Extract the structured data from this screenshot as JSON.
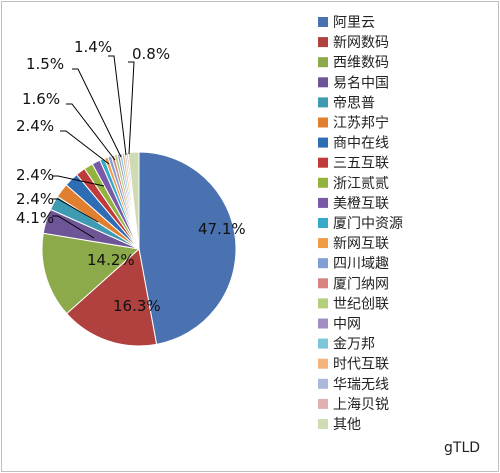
{
  "chart_data": {
    "type": "pie",
    "corner_label": "gTLD",
    "slices": [
      {
        "label": "阿里云",
        "value": 47.1,
        "value_label": "47.1%",
        "color": "#4a72b0"
      },
      {
        "label": "新网数码",
        "value": 16.3,
        "value_label": "16.3%",
        "color": "#b0413e"
      },
      {
        "label": "西维数码",
        "value": 14.2,
        "value_label": "14.2%",
        "color": "#8daa4a"
      },
      {
        "label": "易名中国",
        "value": 4.1,
        "value_label": "4.1%",
        "color": "#6e5597"
      },
      {
        "label": "帝思普",
        "value": 2.4,
        "value_label": "2.4%",
        "color": "#3e9bb2"
      },
      {
        "label": "江苏邦宁",
        "value": 2.4,
        "value_label": "2.4%",
        "color": "#e07f2f"
      },
      {
        "label": "商中在线",
        "value": 2.4,
        "value_label": "2.4%",
        "color": "#2e6db4"
      },
      {
        "label": "三五互联",
        "value": 1.6,
        "value_label": "1.6%",
        "color": "#c0393b"
      },
      {
        "label": "浙江贰贰",
        "value": 1.5,
        "value_label": "1.5%",
        "color": "#93b33f"
      },
      {
        "label": "美橙互联",
        "value": 1.4,
        "value_label": "1.4%",
        "color": "#7a5aa8"
      },
      {
        "label": "厦门中资源",
        "value": 0.8,
        "value_label": "0.8%",
        "color": "#37a9c9"
      },
      {
        "label": "新网互联",
        "value": 0.6,
        "value_label": "",
        "color": "#f29b46"
      },
      {
        "label": "四川域趣",
        "value": 0.6,
        "value_label": "",
        "color": "#7f9fd4"
      },
      {
        "label": "厦门纳网",
        "value": 0.5,
        "value_label": "",
        "color": "#d98380"
      },
      {
        "label": "世纪创联",
        "value": 0.5,
        "value_label": "",
        "color": "#b3cf7c"
      },
      {
        "label": "中网",
        "value": 0.4,
        "value_label": "",
        "color": "#a18fc4"
      },
      {
        "label": "金万邦",
        "value": 0.4,
        "value_label": "",
        "color": "#7cc6d9"
      },
      {
        "label": "时代互联",
        "value": 0.4,
        "value_label": "",
        "color": "#f5b47d"
      },
      {
        "label": "华瑞无线",
        "value": 0.3,
        "value_label": "",
        "color": "#aab9da"
      },
      {
        "label": "上海贝锐",
        "value": 0.3,
        "value_label": "",
        "color": "#e2b0ae"
      },
      {
        "label": "其他",
        "value": 1.8,
        "value_label": "",
        "color": "#cfdcb3"
      }
    ],
    "legend_position": "right"
  }
}
